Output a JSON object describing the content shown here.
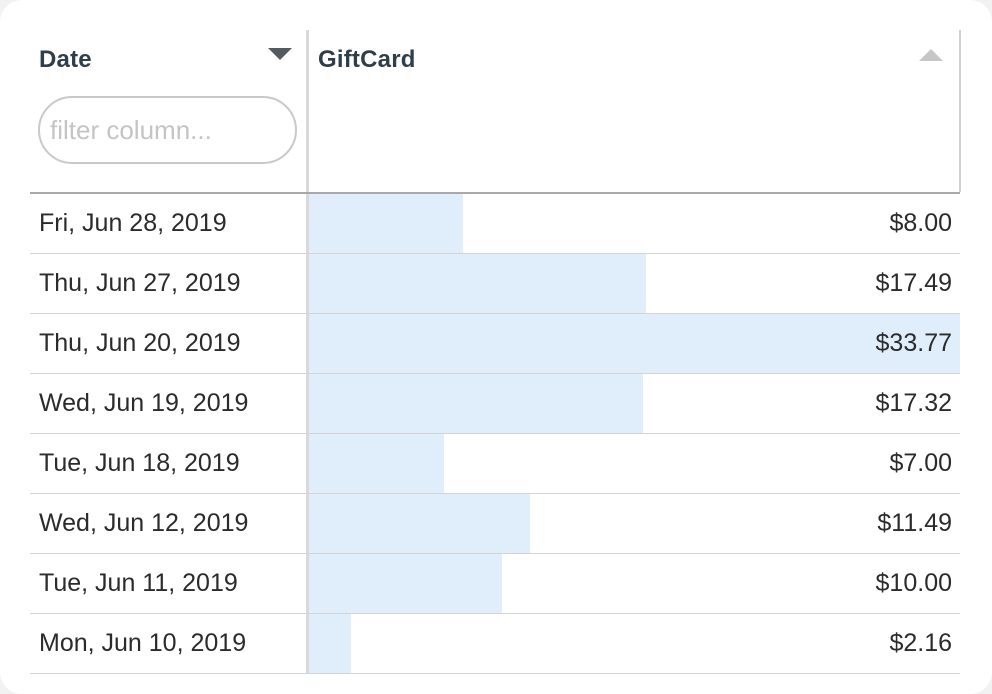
{
  "columns": {
    "date": {
      "title": "Date",
      "sort": "descending"
    },
    "giftcard": {
      "title": "GiftCard",
      "sort": "ascending"
    }
  },
  "filter": {
    "placeholder": "filter column...",
    "value": ""
  },
  "colors": {
    "bar": "#e0eefb",
    "header_text": "#2e3e4a"
  },
  "bar_max": 33.77,
  "rows": [
    {
      "date": "Fri, Jun 28, 2019",
      "amount": "$8.00",
      "value": 8.0
    },
    {
      "date": "Thu, Jun 27, 2019",
      "amount": "$17.49",
      "value": 17.49
    },
    {
      "date": "Thu, Jun 20, 2019",
      "amount": "$33.77",
      "value": 33.77
    },
    {
      "date": "Wed, Jun 19, 2019",
      "amount": "$17.32",
      "value": 17.32
    },
    {
      "date": "Tue, Jun 18, 2019",
      "amount": "$7.00",
      "value": 7.0
    },
    {
      "date": "Wed, Jun 12, 2019",
      "amount": "$11.49",
      "value": 11.49
    },
    {
      "date": "Tue, Jun 11, 2019",
      "amount": "$10.00",
      "value": 10.0
    },
    {
      "date": "Mon, Jun 10, 2019",
      "amount": "$2.16",
      "value": 2.16
    }
  ]
}
